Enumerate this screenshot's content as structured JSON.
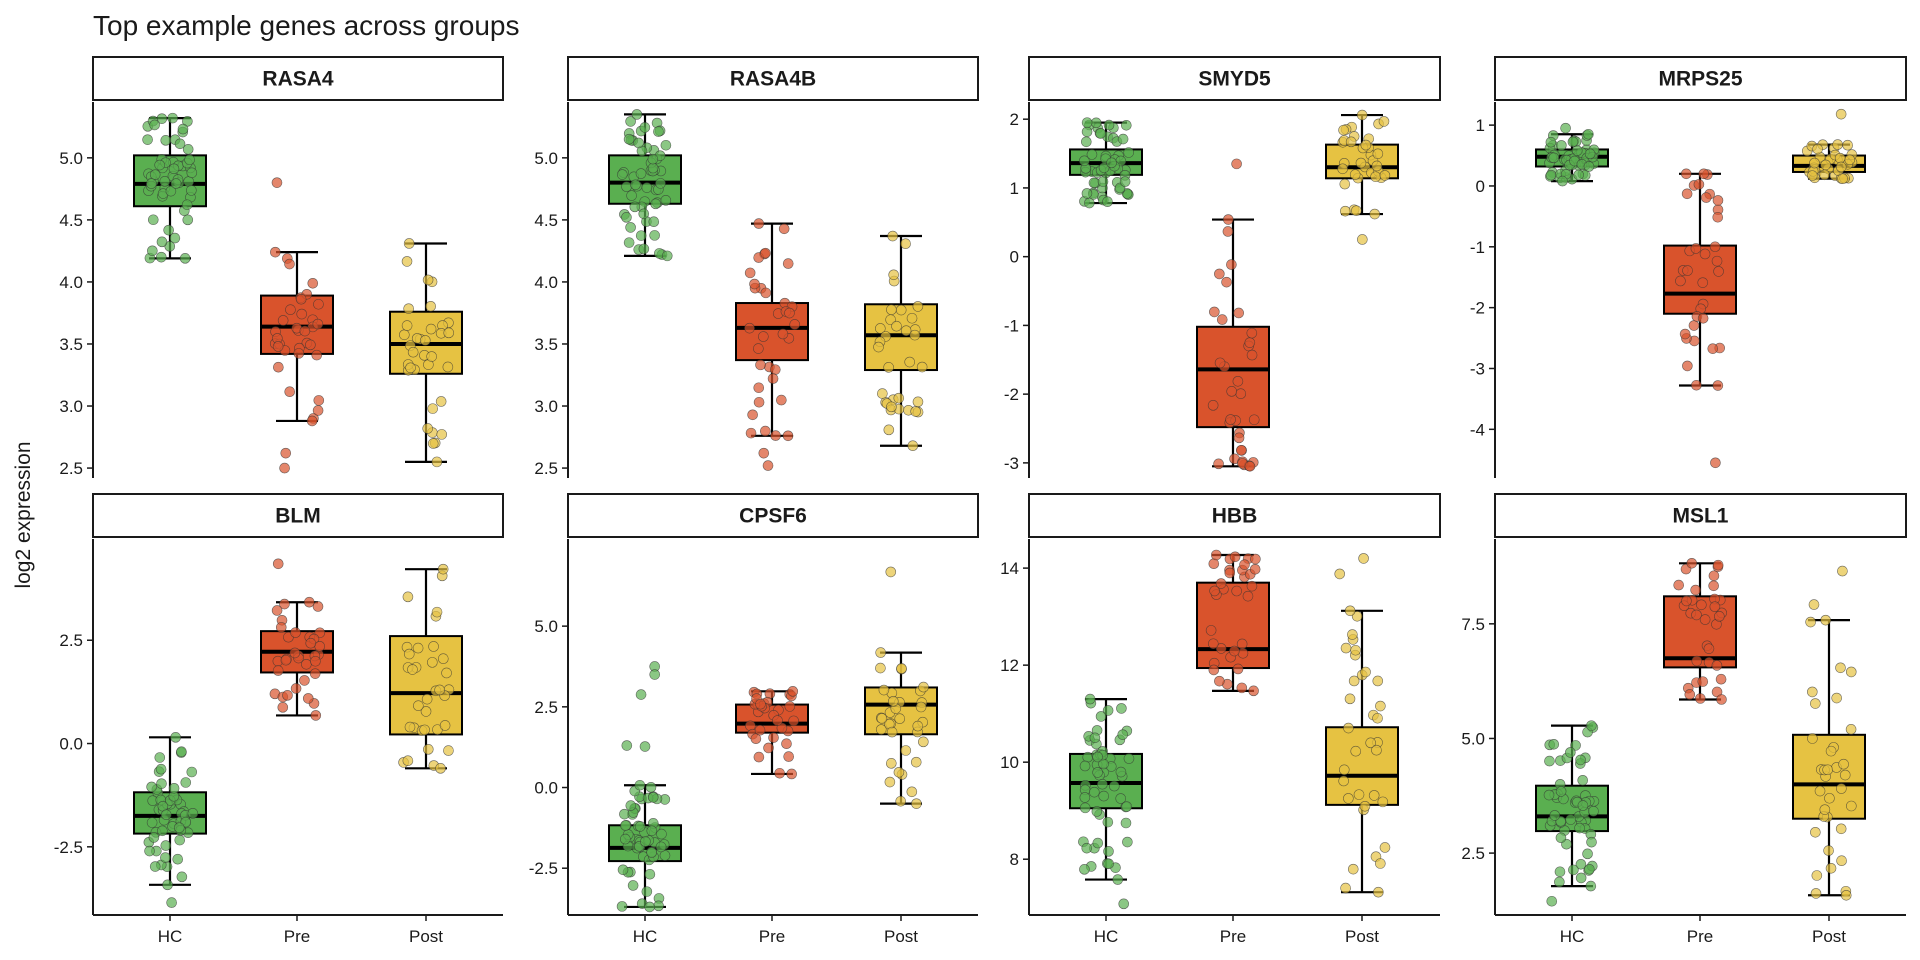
{
  "title": "Top example genes across groups",
  "ylabel": "log2 expression",
  "groups": [
    "HC",
    "Pre",
    "Post"
  ],
  "colors": {
    "HC": "#5aaf50",
    "Pre": "#d9532c",
    "Post": "#e6c242"
  },
  "chart_data": [
    {
      "type": "box",
      "gene": "RASA4",
      "yticks": [
        "2.5",
        "3.0",
        "3.5",
        "4.0",
        "4.5",
        "5.0"
      ],
      "ylim": [
        2.42,
        5.45
      ],
      "boxes": [
        {
          "group": "HC",
          "min": 4.19,
          "q1": 4.61,
          "median": 4.79,
          "q3": 5.02,
          "max": 5.32,
          "outliers": []
        },
        {
          "group": "Pre",
          "min": 2.88,
          "q1": 3.42,
          "median": 3.64,
          "q3": 3.89,
          "max": 4.24,
          "outliers": [
            4.8,
            2.62,
            2.5
          ]
        },
        {
          "group": "Post",
          "min": 2.55,
          "q1": 3.26,
          "median": 3.5,
          "q3": 3.76,
          "max": 4.31,
          "outliers": []
        }
      ]
    },
    {
      "type": "box",
      "gene": "RASA4B",
      "yticks": [
        "2.5",
        "3.0",
        "3.5",
        "4.0",
        "4.5",
        "5.0"
      ],
      "ylim": [
        2.42,
        5.45
      ],
      "boxes": [
        {
          "group": "HC",
          "min": 4.21,
          "q1": 4.63,
          "median": 4.8,
          "q3": 5.02,
          "max": 5.35,
          "outliers": []
        },
        {
          "group": "Pre",
          "min": 2.76,
          "q1": 3.37,
          "median": 3.63,
          "q3": 3.83,
          "max": 4.47,
          "outliers": [
            2.62,
            2.52
          ]
        },
        {
          "group": "Post",
          "min": 2.68,
          "q1": 3.29,
          "median": 3.57,
          "q3": 3.82,
          "max": 4.37,
          "outliers": []
        }
      ]
    },
    {
      "type": "box",
      "gene": "SMYD5",
      "yticks": [
        "-3",
        "-2",
        "-1",
        "0",
        "1",
        "2"
      ],
      "ylim": [
        -3.22,
        2.25
      ],
      "boxes": [
        {
          "group": "HC",
          "min": 0.78,
          "q1": 1.19,
          "median": 1.36,
          "q3": 1.56,
          "max": 1.95,
          "outliers": []
        },
        {
          "group": "Pre",
          "min": -3.05,
          "q1": -2.48,
          "median": -1.64,
          "q3": -1.02,
          "max": 0.54,
          "outliers": [
            1.35
          ]
        },
        {
          "group": "Post",
          "min": 0.62,
          "q1": 1.14,
          "median": 1.3,
          "q3": 1.63,
          "max": 2.06,
          "outliers": [
            0.25
          ]
        }
      ]
    },
    {
      "type": "box",
      "gene": "MRPS25",
      "yticks": [
        "-4",
        "-3",
        "-2",
        "-1",
        "0",
        "1"
      ],
      "ylim": [
        -4.8,
        1.38
      ],
      "boxes": [
        {
          "group": "HC",
          "min": 0.08,
          "q1": 0.32,
          "median": 0.48,
          "q3": 0.6,
          "max": 0.85,
          "outliers": [
            0.95
          ]
        },
        {
          "group": "Pre",
          "min": -3.28,
          "q1": -2.1,
          "median": -1.77,
          "q3": -0.98,
          "max": 0.2,
          "outliers": [
            -4.55
          ]
        },
        {
          "group": "Post",
          "min": 0.12,
          "q1": 0.23,
          "median": 0.33,
          "q3": 0.5,
          "max": 0.68,
          "outliers": [
            1.18
          ]
        }
      ]
    },
    {
      "type": "box",
      "gene": "BLM",
      "yticks": [
        "-2.5",
        "0.0",
        "2.5"
      ],
      "ylim": [
        -4.15,
        4.95
      ],
      "boxes": [
        {
          "group": "HC",
          "min": -3.42,
          "q1": -2.18,
          "median": -1.75,
          "q3": -1.18,
          "max": 0.15,
          "outliers": [
            -3.85
          ]
        },
        {
          "group": "Pre",
          "min": 0.68,
          "q1": 1.72,
          "median": 2.22,
          "q3": 2.72,
          "max": 3.42,
          "outliers": [
            4.35
          ]
        },
        {
          "group": "Post",
          "min": -0.6,
          "q1": 0.22,
          "median": 1.22,
          "q3": 2.6,
          "max": 4.22,
          "outliers": []
        }
      ]
    },
    {
      "type": "box",
      "gene": "CPSF6",
      "yticks": [
        "-2.5",
        "0.0",
        "2.5",
        "5.0"
      ],
      "ylim": [
        -3.95,
        7.7
      ],
      "boxes": [
        {
          "group": "HC",
          "min": -3.7,
          "q1": -2.28,
          "median": -1.87,
          "q3": -1.17,
          "max": 0.07,
          "outliers": [
            3.75,
            3.5,
            2.88,
            1.3,
            1.27
          ]
        },
        {
          "group": "Pre",
          "min": 0.42,
          "q1": 1.7,
          "median": 1.98,
          "q3": 2.57,
          "max": 2.98,
          "outliers": []
        },
        {
          "group": "Post",
          "min": -0.5,
          "q1": 1.65,
          "median": 2.57,
          "q3": 3.1,
          "max": 4.18,
          "outliers": [
            6.68
          ]
        }
      ]
    },
    {
      "type": "box",
      "gene": "HBB",
      "yticks": [
        "8",
        "10",
        "12",
        "14"
      ],
      "ylim": [
        6.85,
        14.6
      ],
      "boxes": [
        {
          "group": "HC",
          "min": 7.58,
          "q1": 9.05,
          "median": 9.57,
          "q3": 10.17,
          "max": 11.3,
          "outliers": [
            7.08
          ]
        },
        {
          "group": "Pre",
          "min": 11.47,
          "q1": 11.94,
          "median": 12.33,
          "q3": 13.7,
          "max": 14.27,
          "outliers": []
        },
        {
          "group": "Post",
          "min": 7.32,
          "q1": 9.12,
          "median": 9.72,
          "q3": 10.72,
          "max": 13.12,
          "outliers": [
            14.2,
            13.88
          ]
        }
      ]
    },
    {
      "type": "box",
      "gene": "MSL1",
      "yticks": [
        "2.5",
        "5.0",
        "7.5"
      ],
      "ylim": [
        1.15,
        9.35
      ],
      "boxes": [
        {
          "group": "HC",
          "min": 1.78,
          "q1": 2.98,
          "median": 3.3,
          "q3": 3.97,
          "max": 5.28,
          "outliers": [
            1.45
          ]
        },
        {
          "group": "Pre",
          "min": 5.85,
          "q1": 6.55,
          "median": 6.75,
          "q3": 8.1,
          "max": 8.82,
          "outliers": []
        },
        {
          "group": "Post",
          "min": 1.58,
          "q1": 3.25,
          "median": 4.0,
          "q3": 5.08,
          "max": 7.58,
          "outliers": [
            8.65,
            7.92
          ]
        }
      ]
    }
  ]
}
